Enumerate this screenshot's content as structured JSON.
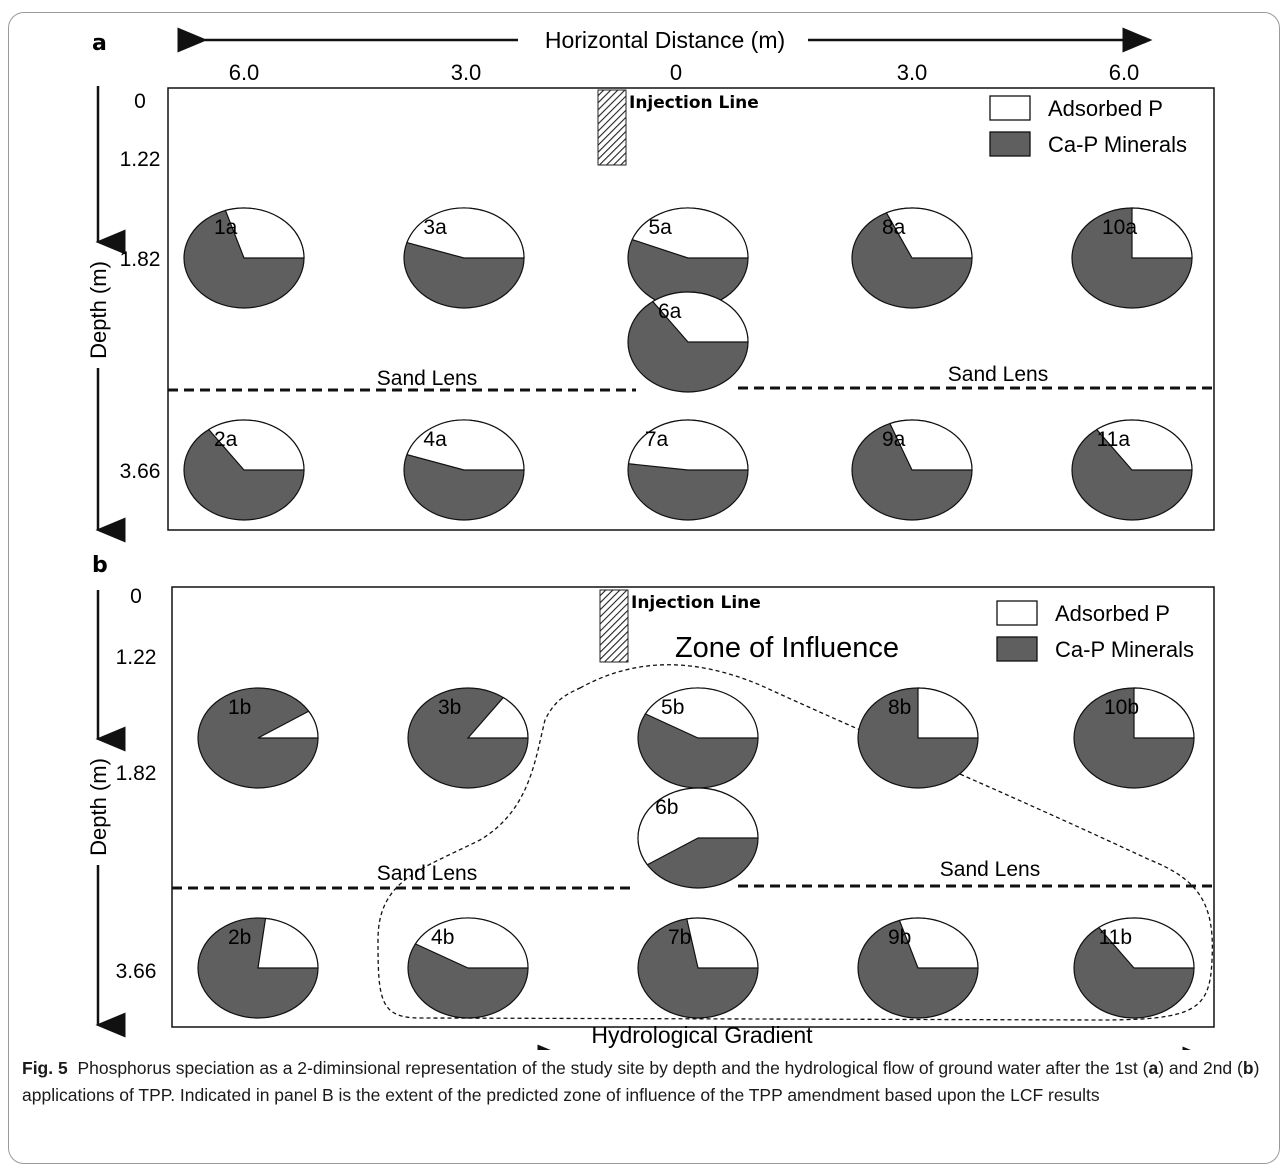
{
  "panels": [
    {
      "letter": "a",
      "top_axis_title": "Horizontal Distance (m)",
      "x_ticks": [
        "6.0",
        "3.0",
        "0",
        "3.0",
        "6.0"
      ],
      "y_ticks": [
        "0",
        "1.22",
        "1.82",
        "3.66"
      ],
      "y_axis_title": "Depth (m)",
      "injection_label": "Injection Line",
      "legend": [
        "Adsorbed P",
        "Ca-P Minerals"
      ],
      "sand_lens_left": "Sand Lens",
      "sand_lens_right": "Sand Lens",
      "zone_label": "",
      "pies": [
        {
          "label": "1a",
          "adsorbed_fraction": 0.3
        },
        {
          "label": "3a",
          "adsorbed_fraction": 0.45
        },
        {
          "label": "5a",
          "adsorbed_fraction": 0.44
        },
        {
          "label": "8a",
          "adsorbed_fraction": 0.32
        },
        {
          "label": "10a",
          "adsorbed_fraction": 0.25
        },
        {
          "label": "6a",
          "adsorbed_fraction": 0.35
        },
        {
          "label": "2a",
          "adsorbed_fraction": 0.35
        },
        {
          "label": "4a",
          "adsorbed_fraction": 0.45
        },
        {
          "label": "7a",
          "adsorbed_fraction": 0.48
        },
        {
          "label": "9a",
          "adsorbed_fraction": 0.31
        },
        {
          "label": "11a",
          "adsorbed_fraction": 0.35
        }
      ]
    },
    {
      "letter": "b",
      "top_axis_title": "",
      "x_ticks": [],
      "y_ticks": [
        "0",
        "1.22",
        "1.82",
        "3.66"
      ],
      "y_axis_title": "Depth (m)",
      "injection_label": "Injection Line",
      "legend": [
        "Adsorbed P",
        "Ca-P Minerals"
      ],
      "sand_lens_left": "Sand Lens",
      "sand_lens_right": "Sand Lens",
      "zone_label": "Zone of Influence",
      "pies": [
        {
          "label": "1b",
          "adsorbed_fraction": 0.09
        },
        {
          "label": "3b",
          "adsorbed_fraction": 0.15
        },
        {
          "label": "5b",
          "adsorbed_fraction": 0.42
        },
        {
          "label": "8b",
          "adsorbed_fraction": 0.25
        },
        {
          "label": "10b",
          "adsorbed_fraction": 0.25
        },
        {
          "label": "6b",
          "adsorbed_fraction": 0.59
        },
        {
          "label": "2b",
          "adsorbed_fraction": 0.23
        },
        {
          "label": "4b",
          "adsorbed_fraction": 0.42
        },
        {
          "label": "7b",
          "adsorbed_fraction": 0.28
        },
        {
          "label": "9b",
          "adsorbed_fraction": 0.3
        },
        {
          "label": "11b",
          "adsorbed_fraction": 0.35
        }
      ]
    }
  ],
  "bottom_axis_title": "Hydrological Gradient",
  "caption": {
    "fig_label": "Fig. 5",
    "text_1": "Phosphorus speciation as a 2-diminsional representation of the study site by depth and the hydrological flow of ground water after the 1st (",
    "a": "a",
    "text_2": ") and 2nd (",
    "b": "b",
    "text_3": ") applications of TPP. Indicated in panel B is the extent of the predicted zone of influence of the TPP amendment based upon the LCF results"
  },
  "colors": {
    "ca_p": "#5f5f5f",
    "adsorbed": "#ffffff",
    "line": "#111111"
  }
}
